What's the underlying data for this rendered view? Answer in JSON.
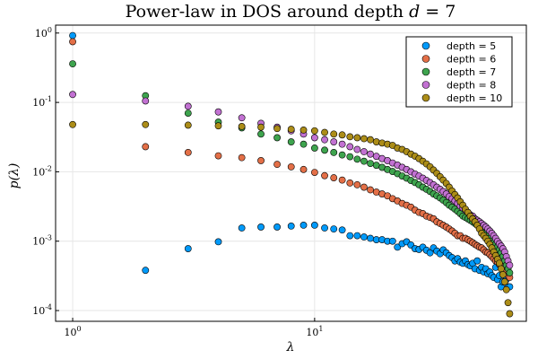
{
  "title_text": "Power-law in DOS around depth ",
  "title_math_var": "d",
  "title_math_rest": " = 7",
  "xlabel": "λ",
  "ylabel": "p(λ)",
  "x_tick_labels": [
    {
      "base": "10",
      "exp": "0",
      "value": 1
    },
    {
      "base": "10",
      "exp": "1",
      "value": 10
    }
  ],
  "y_tick_labels": [
    {
      "base": "10",
      "exp": "0",
      "value": 1
    },
    {
      "base": "10",
      "exp": "-1",
      "value": 0.1
    },
    {
      "base": "10",
      "exp": "-2",
      "value": 0.01
    },
    {
      "base": "10",
      "exp": "-3",
      "value": 0.001
    },
    {
      "base": "10",
      "exp": "-4",
      "value": 0.0001
    }
  ],
  "chart_data": {
    "type": "scatter",
    "title": "Power-law in DOS around depth d = 7",
    "xlabel": "λ",
    "ylabel": "p(λ)",
    "xscale": "log",
    "yscale": "log",
    "xlim": [
      0.85,
      75
    ],
    "ylim": [
      7e-05,
      1.3
    ],
    "grid": true,
    "legend_position": "top-right",
    "series": [
      {
        "name": "depth = 5",
        "color": "#009AFA",
        "x": [
          1,
          2,
          3,
          4,
          5,
          6,
          7,
          8,
          9,
          10,
          11,
          12,
          13,
          14,
          15,
          16,
          17,
          18,
          19,
          20,
          21,
          22,
          23,
          24,
          25,
          26,
          27,
          28,
          29,
          30,
          31,
          32,
          33,
          34,
          35,
          36,
          37,
          38,
          39,
          40,
          41,
          42,
          43,
          44,
          45,
          46,
          47,
          48,
          49,
          50,
          51,
          52,
          53,
          54,
          55,
          56,
          57,
          58,
          59,
          60,
          61,
          62,
          63,
          64
        ],
        "y": [
          0.92,
          0.00038,
          0.00078,
          0.00098,
          0.00155,
          0.0016,
          0.0016,
          0.00165,
          0.0017,
          0.0017,
          0.00155,
          0.0015,
          0.00145,
          0.0012,
          0.0012,
          0.00115,
          0.0011,
          0.00105,
          0.00105,
          0.001,
          0.001,
          0.00082,
          0.00092,
          0.00098,
          0.00088,
          0.00078,
          0.00076,
          0.00082,
          0.00074,
          0.00068,
          0.0008,
          0.00072,
          0.00066,
          0.00075,
          0.00068,
          0.00062,
          0.00058,
          0.00052,
          0.00056,
          0.0005,
          0.00048,
          0.00052,
          0.00046,
          0.00044,
          0.00048,
          0.0004,
          0.00052,
          0.00038,
          0.00042,
          0.00036,
          0.0004,
          0.00034,
          0.00036,
          0.00032,
          0.0003,
          0.00042,
          0.00028,
          0.00032,
          0.00022,
          0.00026,
          0.00034,
          0.00028,
          0.00022,
          0.00022
        ]
      },
      {
        "name": "depth = 6",
        "color": "#E36F47",
        "x": [
          1,
          2,
          3,
          4,
          5,
          6,
          7,
          8,
          9,
          10,
          11,
          12,
          13,
          14,
          15,
          16,
          17,
          18,
          19,
          20,
          21,
          22,
          23,
          24,
          25,
          26,
          27,
          28,
          29,
          30,
          31,
          32,
          33,
          34,
          35,
          36,
          37,
          38,
          39,
          40,
          41,
          42,
          43,
          44,
          45,
          46,
          47,
          48,
          49,
          50,
          51,
          52,
          53,
          54,
          55,
          56,
          57,
          58,
          59,
          60,
          61,
          62,
          63,
          64
        ],
        "y": [
          0.75,
          0.023,
          0.019,
          0.017,
          0.016,
          0.0145,
          0.0128,
          0.0118,
          0.0108,
          0.0098,
          0.0088,
          0.0082,
          0.0076,
          0.0069,
          0.0065,
          0.006,
          0.0055,
          0.0051,
          0.0048,
          0.0045,
          0.0041,
          0.0038,
          0.0035,
          0.0033,
          0.0031,
          0.0028,
          0.0026,
          0.0025,
          0.0023,
          0.0022,
          0.0021,
          0.0019,
          0.0018,
          0.0017,
          0.0016,
          0.0015,
          0.0014,
          0.0013,
          0.0012,
          0.0012,
          0.0011,
          0.0011,
          0.00105,
          0.001,
          0.00095,
          0.0009,
          0.00086,
          0.00082,
          0.0008,
          0.00075,
          0.0007,
          0.00068,
          0.00064,
          0.0006,
          0.00056,
          0.00052,
          0.0005,
          0.00046,
          0.00044,
          0.0004,
          0.00038,
          0.00036,
          0.00032,
          0.0003
        ]
      },
      {
        "name": "depth = 7",
        "color": "#3EA44E",
        "x": [
          1,
          2,
          3,
          4,
          5,
          6,
          7,
          8,
          9,
          10,
          11,
          12,
          13,
          14,
          15,
          16,
          17,
          18,
          19,
          20,
          21,
          22,
          23,
          24,
          25,
          26,
          27,
          28,
          29,
          30,
          31,
          32,
          33,
          34,
          35,
          36,
          37,
          38,
          39,
          40,
          41,
          42,
          43,
          44,
          45,
          46,
          47,
          48,
          49,
          50,
          51,
          52,
          53,
          54,
          55,
          56,
          57,
          58,
          59,
          60,
          61,
          62,
          63,
          64
        ],
        "y": [
          0.36,
          0.125,
          0.07,
          0.052,
          0.043,
          0.035,
          0.031,
          0.027,
          0.025,
          0.022,
          0.0205,
          0.019,
          0.0175,
          0.0165,
          0.0152,
          0.0142,
          0.0132,
          0.0124,
          0.0116,
          0.0108,
          0.0101,
          0.0094,
          0.0087,
          0.0081,
          0.0075,
          0.007,
          0.0065,
          0.006,
          0.0056,
          0.0052,
          0.0048,
          0.0045,
          0.0042,
          0.0039,
          0.0036,
          0.0033,
          0.0031,
          0.0029,
          0.0027,
          0.0025,
          0.0023,
          0.0022,
          0.0021,
          0.002,
          0.0019,
          0.0018,
          0.0017,
          0.0016,
          0.0015,
          0.0014,
          0.0013,
          0.0012,
          0.0011,
          0.001,
          0.00095,
          0.0009,
          0.00082,
          0.00075,
          0.00068,
          0.0006,
          0.00052,
          0.00045,
          0.0004,
          0.00035
        ]
      },
      {
        "name": "depth = 8",
        "color": "#C271D2",
        "x": [
          1,
          2,
          3,
          4,
          5,
          6,
          7,
          8,
          9,
          10,
          11,
          12,
          13,
          14,
          15,
          16,
          17,
          18,
          19,
          20,
          21,
          22,
          23,
          24,
          25,
          26,
          27,
          28,
          29,
          30,
          31,
          32,
          33,
          34,
          35,
          36,
          37,
          38,
          39,
          40,
          41,
          42,
          43,
          44,
          45,
          46,
          47,
          48,
          49,
          50,
          51,
          52,
          53,
          54,
          55,
          56,
          57,
          58,
          59,
          60,
          61,
          62,
          63,
          64
        ],
        "y": [
          0.13,
          0.105,
          0.088,
          0.073,
          0.06,
          0.05,
          0.044,
          0.039,
          0.035,
          0.031,
          0.029,
          0.027,
          0.025,
          0.023,
          0.021,
          0.0195,
          0.018,
          0.0167,
          0.0155,
          0.0145,
          0.0134,
          0.0125,
          0.0116,
          0.0108,
          0.01,
          0.0093,
          0.0087,
          0.0081,
          0.0075,
          0.007,
          0.0065,
          0.006,
          0.0056,
          0.0052,
          0.0048,
          0.0044,
          0.0041,
          0.0038,
          0.0035,
          0.0032,
          0.003,
          0.0028,
          0.0026,
          0.0024,
          0.0023,
          0.0021,
          0.002,
          0.0019,
          0.0018,
          0.0017,
          0.0016,
          0.0015,
          0.0014,
          0.0013,
          0.0012,
          0.0011,
          0.001,
          0.00092,
          0.00085,
          0.00078,
          0.0007,
          0.0006,
          0.00052,
          0.00045
        ]
      },
      {
        "name": "depth = 10",
        "color": "#AC8D18",
        "x": [
          1,
          2,
          3,
          4,
          5,
          6,
          7,
          8,
          9,
          10,
          11,
          12,
          13,
          14,
          15,
          16,
          17,
          18,
          19,
          20,
          21,
          22,
          23,
          24,
          25,
          26,
          27,
          28,
          29,
          30,
          31,
          32,
          33,
          34,
          35,
          36,
          37,
          38,
          39,
          40,
          41,
          42,
          43,
          44,
          45,
          46,
          47,
          48,
          49,
          50,
          51,
          52,
          53,
          54,
          55,
          56,
          57,
          58,
          59,
          60,
          61,
          62,
          63,
          64
        ],
        "y": [
          0.048,
          0.048,
          0.047,
          0.046,
          0.045,
          0.044,
          0.042,
          0.041,
          0.04,
          0.039,
          0.037,
          0.035,
          0.034,
          0.032,
          0.031,
          0.03,
          0.029,
          0.027,
          0.026,
          0.025,
          0.024,
          0.022,
          0.021,
          0.0195,
          0.018,
          0.0168,
          0.0155,
          0.0142,
          0.013,
          0.0118,
          0.0106,
          0.0095,
          0.0085,
          0.0076,
          0.0068,
          0.006,
          0.0053,
          0.0047,
          0.0042,
          0.0037,
          0.0033,
          0.0029,
          0.0026,
          0.0023,
          0.0021,
          0.0019,
          0.0017,
          0.0015,
          0.0013,
          0.0012,
          0.0011,
          0.001,
          0.0009,
          0.0008,
          0.0007,
          0.00062,
          0.00055,
          0.00048,
          0.0004,
          0.00033,
          0.00026,
          0.0002,
          0.00013,
          9e-05
        ]
      }
    ]
  }
}
